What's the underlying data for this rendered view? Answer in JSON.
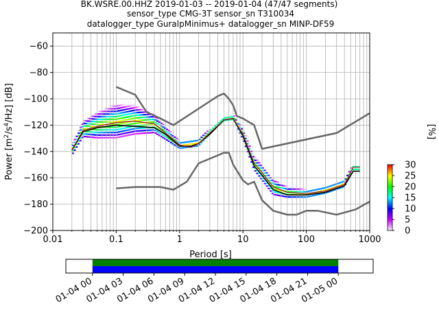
{
  "title_lines": [
    "BK.WSRE.00.HHZ   2019-01-03 -- 2019-01-04  (47/47 segments)",
    "sensor_type CMG-3T sensor_sn T310034",
    "datalogger_type GuralpMinimus+ datalogger_sn MINP-DF59"
  ],
  "chart_data": [
    {
      "type": "heatmap",
      "subtype": "probabilistic-power-spectral-density",
      "xlabel": "Period [s]",
      "ylabel": "Power [m^2/s^4/Hz] [dB]",
      "xscale": "log",
      "xlim": [
        0.01,
        1000
      ],
      "ylim": [
        -200,
        -50
      ],
      "x_ticks": [
        0.01,
        0.1,
        1,
        10,
        100,
        1000
      ],
      "x_tick_labels": [
        "0.01",
        "0.1",
        "1",
        "10",
        "100",
        "1000"
      ],
      "y_ticks": [
        -200,
        -180,
        -160,
        -140,
        -120,
        -100,
        -80,
        -60
      ],
      "y_tick_labels": [
        "−200",
        "−180",
        "−160",
        "−140",
        "−120",
        "−100",
        "−80",
        "−60"
      ],
      "grid": true,
      "colormap": [
        "#ffffff",
        "#cc00ff",
        "#0000ff",
        "#00ffff",
        "#00ff00",
        "#ffff00",
        "#ff0000"
      ],
      "density_bands": [
        {
          "x": [
            0.02,
            0.03,
            0.05,
            0.1,
            0.2,
            0.4,
            0.6,
            1,
            2,
            3,
            5,
            7,
            10,
            15,
            20,
            30,
            50,
            100,
            200,
            400,
            550,
            700
          ],
          "y": [
            -140,
            -124,
            -121,
            -118,
            -117,
            -120,
            -127,
            -136,
            -134,
            -126,
            -116,
            -115,
            -128,
            -150,
            -157,
            -168,
            -172,
            -173,
            -170,
            -165,
            -153,
            -153
          ],
          "halfwidth": [
            5,
            7,
            11,
            14,
            12,
            8,
            6,
            4,
            4,
            3,
            3,
            3,
            5,
            6,
            7,
            7,
            5,
            4,
            4,
            4,
            3,
            3
          ]
        }
      ],
      "median_curve": {
        "x": [
          0.02,
          0.03,
          0.05,
          0.1,
          0.2,
          0.4,
          0.6,
          1,
          1.5,
          2,
          3,
          5,
          7,
          10,
          15,
          20,
          30,
          50,
          100,
          200,
          400,
          550,
          700
        ],
        "y": [
          -139,
          -124,
          -121,
          -118,
          -117,
          -119,
          -126,
          -135,
          -137,
          -134,
          -126,
          -116,
          -115,
          -127,
          -149,
          -156,
          -167,
          -171,
          -172,
          -170,
          -165,
          -152,
          -152
        ]
      },
      "mode_curve": {
        "x": [
          0.02,
          0.03,
          0.05,
          0.1,
          0.2,
          0.4,
          0.6,
          1,
          1.5,
          2,
          3,
          5,
          7,
          10,
          15,
          20,
          30,
          50,
          100,
          200,
          400,
          550,
          700
        ],
        "y": [
          -139,
          -125,
          -122,
          -120,
          -121,
          -122,
          -127,
          -136,
          -136,
          -134,
          -127,
          -116,
          -115,
          -128,
          -151,
          -158,
          -169,
          -173,
          -173,
          -171,
          -166,
          -155,
          -155
        ]
      },
      "nlnm": {
        "x": [
          0.1,
          0.2,
          0.5,
          0.8,
          1.3,
          2,
          5,
          6,
          7,
          10,
          12,
          15,
          20,
          30,
          50,
          70,
          100,
          150,
          300,
          600,
          1000
        ],
        "y": [
          -168,
          -167,
          -167,
          -169,
          -163,
          -149,
          -141,
          -141,
          -150,
          -162,
          -165,
          -163,
          -177,
          -185,
          -188,
          -188,
          -185,
          -185,
          -188,
          -184,
          -178
        ]
      },
      "nhnm": {
        "x": [
          0.1,
          0.2,
          0.3,
          0.5,
          0.8,
          4,
          5,
          6,
          7,
          8,
          10,
          15,
          20,
          300,
          1000
        ],
        "y": [
          -91,
          -97,
          -110,
          -115,
          -120,
          -98,
          -96,
          -100,
          -105,
          -113,
          -115,
          -120,
          -138,
          -126,
          -111
        ]
      },
      "colorbar": {
        "label": "[%]",
        "min": 0,
        "max": 30,
        "ticks": [
          0,
          5,
          10,
          15,
          20,
          25,
          30
        ],
        "tick_labels": [
          "0",
          "5",
          "10",
          "15",
          "20",
          "25",
          "30"
        ]
      },
      "time_coverage": {
        "tick_labels": [
          "01-04 00",
          "01-04 03",
          "01-04 06",
          "01-04 09",
          "01-04 12",
          "01-04 15",
          "01-04 18",
          "01-04 21",
          "01-05 00"
        ],
        "span_start_hours": -2.6,
        "span_end_hours": 27.4,
        "data_start_hours": 0,
        "data_end_hours": 24,
        "bar_colors": [
          "#008000",
          "#0000ff"
        ]
      }
    }
  ]
}
